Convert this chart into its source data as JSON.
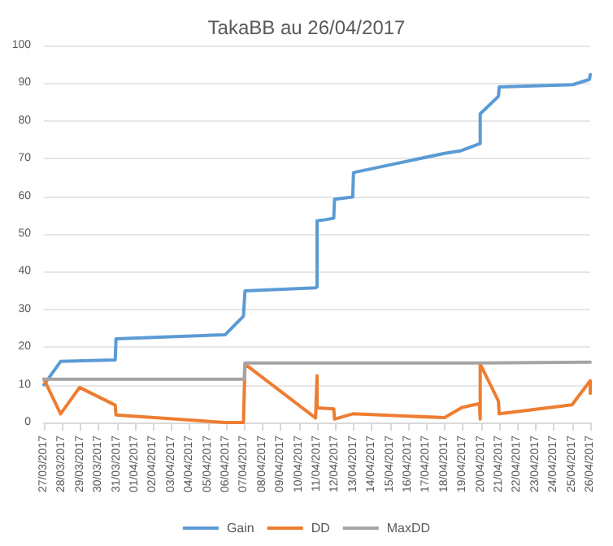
{
  "chart_data": {
    "type": "line",
    "title": "TakaBB au 26/04/2017",
    "legend": "bottom",
    "grid": "y",
    "marker": "none",
    "line_style": "solid",
    "xlim": [
      "2017-03-27",
      "2017-04-26"
    ],
    "xticks": [
      {
        "value": "2017-03-27",
        "label": "27/03/2017"
      },
      {
        "value": "2017-03-28",
        "label": "28/03/2017"
      },
      {
        "value": "2017-03-29",
        "label": "29/03/2017"
      },
      {
        "value": "2017-03-30",
        "label": "30/03/2017"
      },
      {
        "value": "2017-03-31",
        "label": "31/03/2017"
      },
      {
        "value": "2017-04-01",
        "label": "01/04/2017"
      },
      {
        "value": "2017-04-02",
        "label": "02/04/2017"
      },
      {
        "value": "2017-04-03",
        "label": "03/04/2017"
      },
      {
        "value": "2017-04-04",
        "label": "04/04/2017"
      },
      {
        "value": "2017-04-05",
        "label": "05/04/2017"
      },
      {
        "value": "2017-04-06",
        "label": "06/04/2017"
      },
      {
        "value": "2017-04-07",
        "label": "07/04/2017"
      },
      {
        "value": "2017-04-08",
        "label": "08/04/2017"
      },
      {
        "value": "2017-04-09",
        "label": "09/04/2017"
      },
      {
        "value": "2017-04-10",
        "label": "10/04/2017"
      },
      {
        "value": "2017-04-11",
        "label": "11/04/2017"
      },
      {
        "value": "2017-04-12",
        "label": "12/04/2017"
      },
      {
        "value": "2017-04-13",
        "label": "13/04/2017"
      },
      {
        "value": "2017-04-14",
        "label": "14/04/2017"
      },
      {
        "value": "2017-04-15",
        "label": "15/04/2017"
      },
      {
        "value": "2017-04-16",
        "label": "16/04/2017"
      },
      {
        "value": "2017-04-17",
        "label": "17/04/2017"
      },
      {
        "value": "2017-04-18",
        "label": "18/04/2017"
      },
      {
        "value": "2017-04-19",
        "label": "19/04/2017"
      },
      {
        "value": "2017-04-20",
        "label": "20/04/2017"
      },
      {
        "value": "2017-04-21",
        "label": "21/04/2017"
      },
      {
        "value": "2017-04-22",
        "label": "22/04/2017"
      },
      {
        "value": "2017-04-23",
        "label": "23/04/2017"
      },
      {
        "value": "2017-04-24",
        "label": "24/04/2017"
      },
      {
        "value": "2017-04-25",
        "label": "25/04/2017"
      },
      {
        "value": "2017-04-26",
        "label": "26/04/2017"
      }
    ],
    "ylim": [
      0,
      100
    ],
    "yticks": [
      0,
      10,
      20,
      30,
      40,
      50,
      60,
      70,
      80,
      90,
      100
    ],
    "series": [
      {
        "name": "Gain",
        "color": "#5b9bd5",
        "x": [
          "2017-03-27T00:00",
          "2017-03-27T22:00",
          "2017-03-30T22:00",
          "2017-03-30T23:00",
          "2017-04-05T23:00",
          "2017-04-06T23:00",
          "2017-04-07T01:00",
          "2017-04-10T22:00",
          "2017-04-11T00:00",
          "2017-04-11T00:00",
          "2017-04-11T11:00",
          "2017-04-11T22:00",
          "2017-04-11T23:00",
          "2017-04-12T23:00",
          "2017-04-13T00:00",
          "2017-04-18T00:00",
          "2017-04-18T22:00",
          "2017-04-19T23:00",
          "2017-04-19T23:00",
          "2017-04-20T23:00",
          "2017-04-21T00:00",
          "2017-04-25T01:00",
          "2017-04-25T23:00",
          "2017-04-26T00:00"
        ],
        "values": [
          10,
          16.2,
          16.6,
          22.2,
          23.3,
          28.2,
          34.9,
          35.7,
          36,
          53.5,
          53.8,
          54.2,
          59.2,
          59.8,
          66.3,
          71.4,
          72.1,
          74,
          81.9,
          86.5,
          89,
          89.6,
          91,
          92.3
        ]
      },
      {
        "name": "DD",
        "color": "#ed7d31",
        "x": [
          "2017-03-27T00:00",
          "2017-03-27T22:00",
          "2017-03-28T23:00",
          "2017-03-30T22:00",
          "2017-03-30T23:00",
          "2017-04-05T23:00",
          "2017-04-06T23:00",
          "2017-04-07T01:00",
          "2017-04-10T22:00",
          "2017-04-11T00:00",
          "2017-04-11T00:00",
          "2017-04-11T22:00",
          "2017-04-11T23:00",
          "2017-04-12T23:00",
          "2017-04-18T00:00",
          "2017-04-18T23:00",
          "2017-04-19T22:00",
          "2017-04-19T23:00",
          "2017-04-19T23:00",
          "2017-04-20T23:00",
          "2017-04-21T00:00",
          "2017-04-25T00:00",
          "2017-04-26T00:00",
          "2017-04-26T00:00"
        ],
        "values": [
          11.5,
          2.3,
          9.3,
          4.6,
          2,
          0,
          0,
          15.5,
          1.2,
          12.4,
          3.9,
          3.6,
          0.9,
          2.3,
          1.3,
          4,
          5,
          0.9,
          15.5,
          5.7,
          2.3,
          4.7,
          11.1,
          7.7
        ]
      },
      {
        "name": "MaxDD",
        "color": "#a5a5a5",
        "x": [
          "2017-03-27T00:00",
          "2017-04-07T00:00",
          "2017-04-07T01:00",
          "2017-04-20T00:00",
          "2017-04-20T00:00",
          "2017-04-26T00:00"
        ],
        "values": [
          11.5,
          11.5,
          15.8,
          15.8,
          16,
          16
        ]
      }
    ]
  }
}
